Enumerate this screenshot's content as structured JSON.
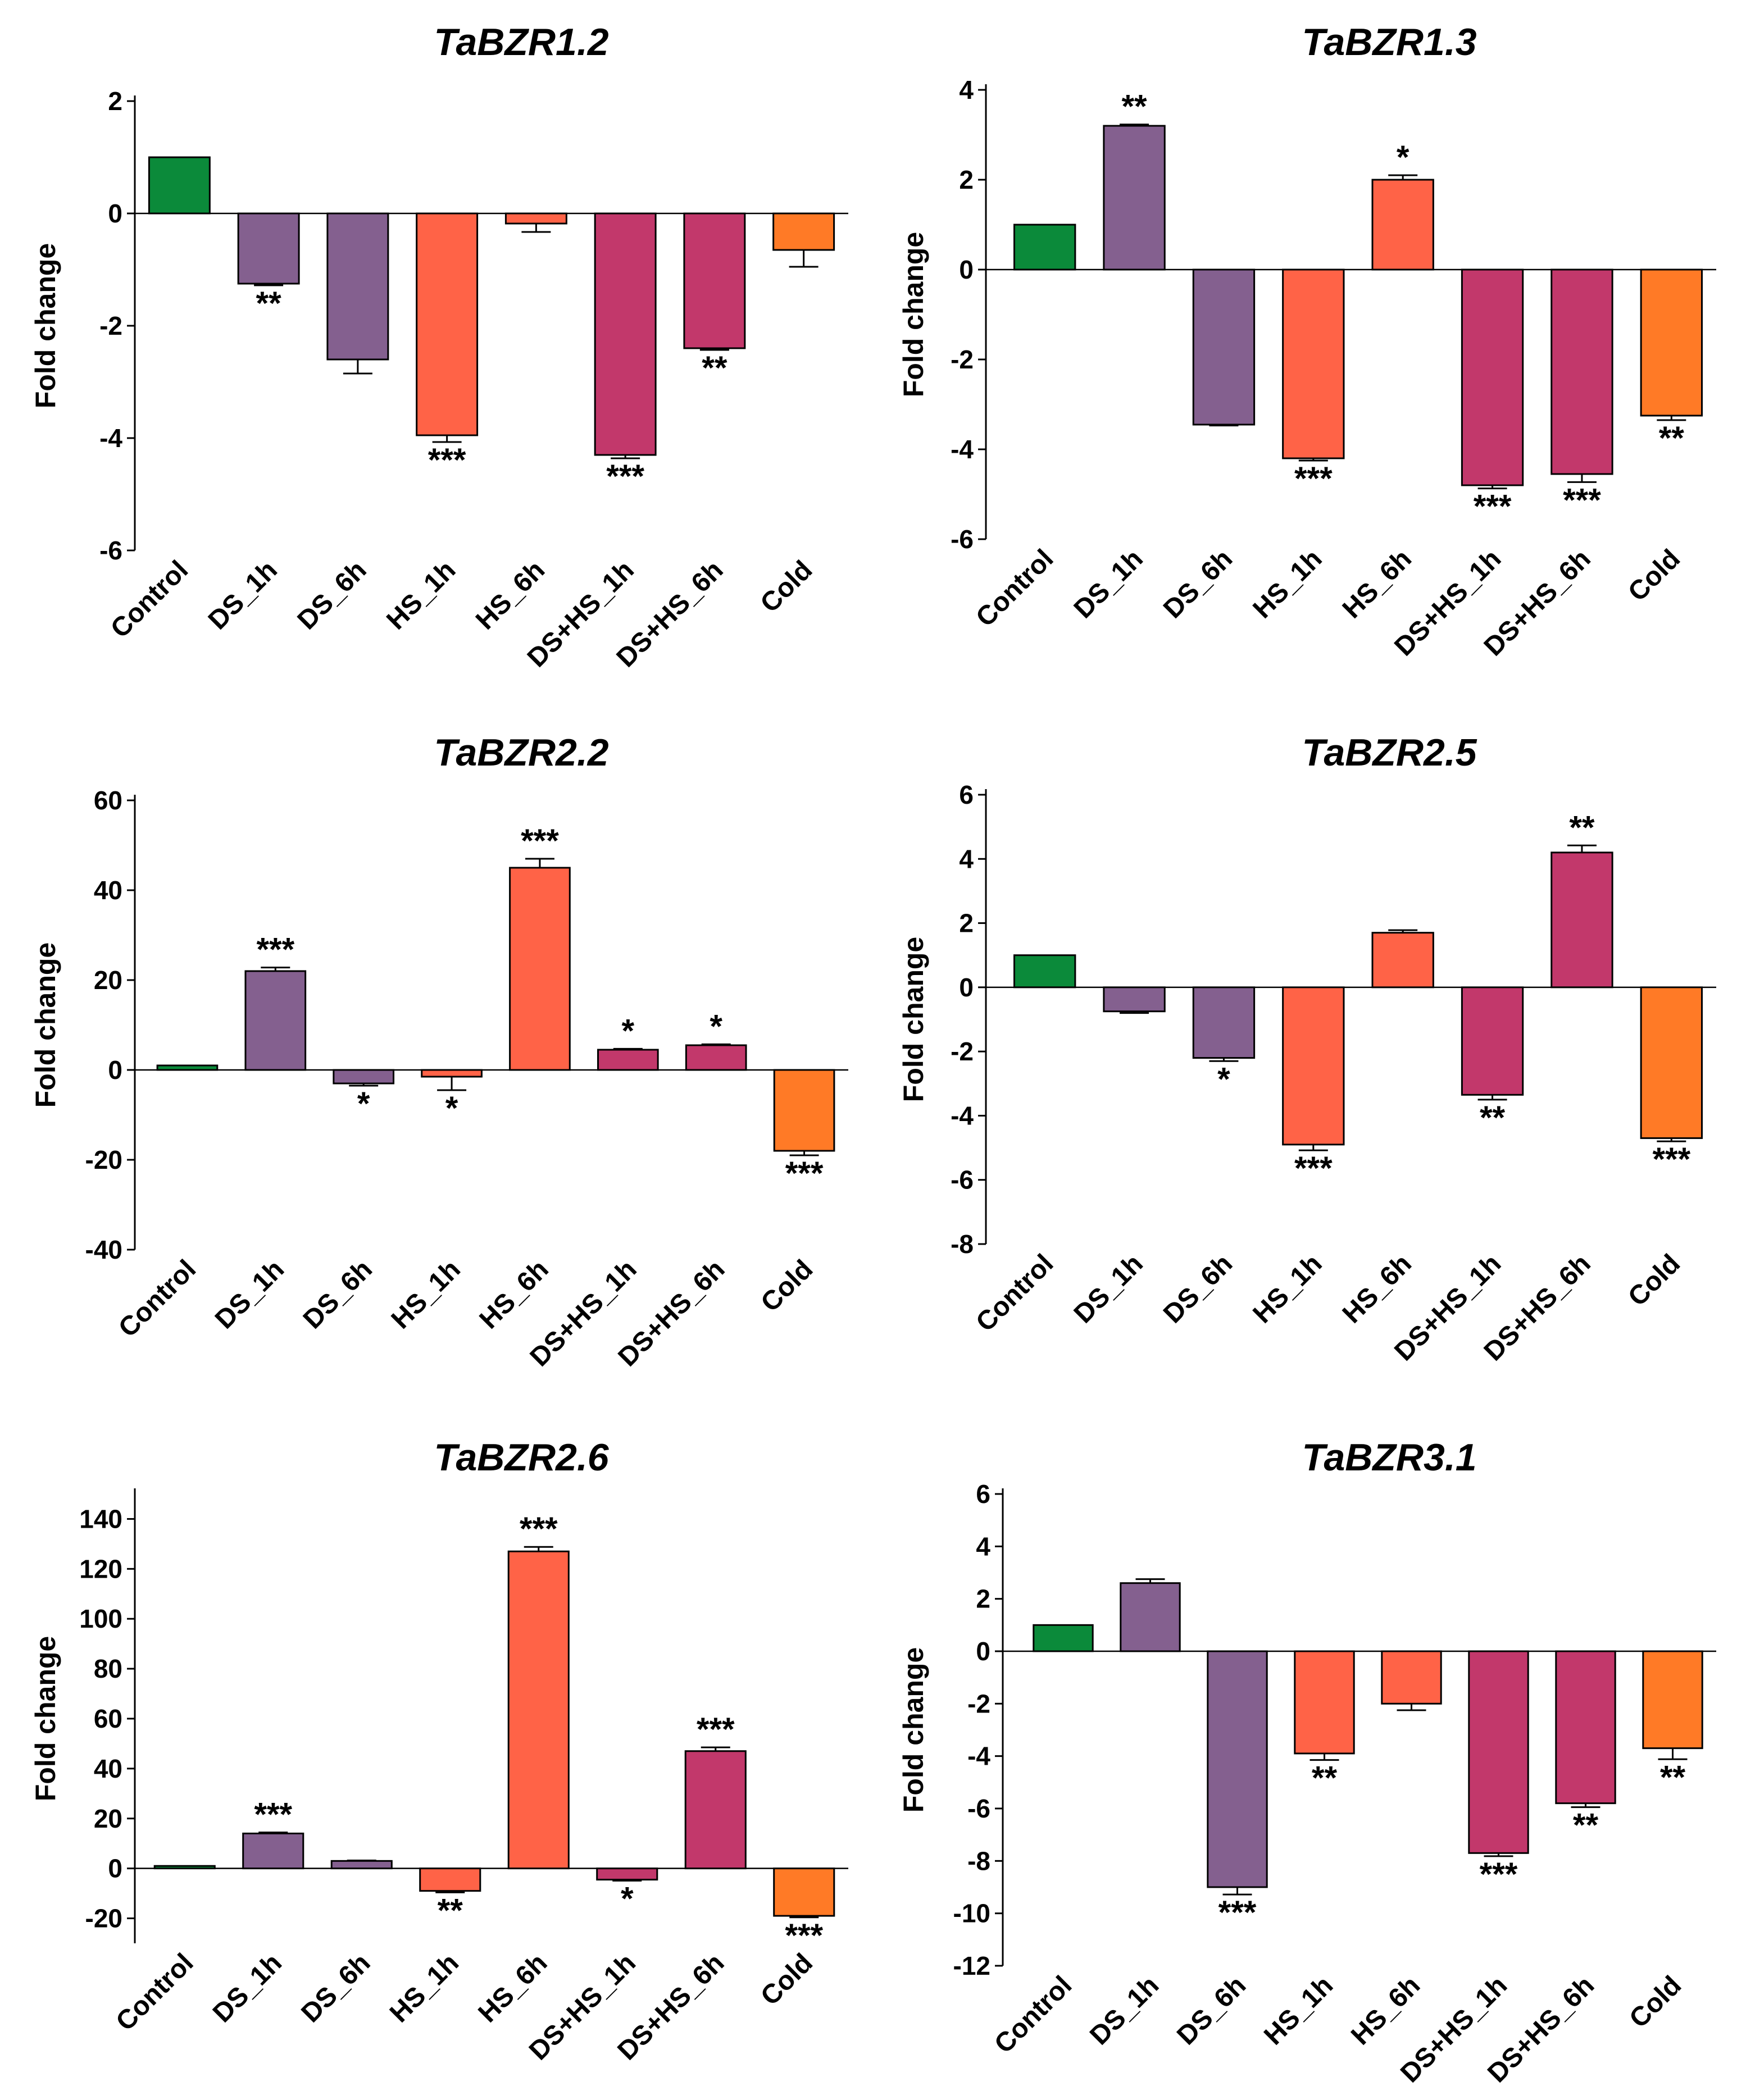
{
  "colors": {
    "Control": "#0b8a3a",
    "DS": "#84608f",
    "HS": "#ff6347",
    "DSHS": "#c2386b",
    "Cold": "#ff7a26"
  },
  "chart_data": [
    {
      "type": "bar",
      "title": "TaBZR1.2",
      "ylabel": "Fold change",
      "ylim": [
        -6,
        2
      ],
      "yticks": [
        -6,
        -4,
        -2,
        0,
        2
      ],
      "tick_labels": [
        "-6",
        "-4",
        "-2",
        "0",
        "2"
      ],
      "categories": [
        "Control",
        "DS_1h",
        "DS_6h",
        "HS_1h",
        "HS_6h",
        "DS+HS_1h",
        "DS+HS_6h",
        "Cold"
      ],
      "values": [
        1.0,
        -1.25,
        -2.6,
        -3.95,
        -0.18,
        -4.3,
        -2.4,
        -0.65
      ],
      "errors": [
        0,
        0.03,
        0.25,
        0.12,
        0.15,
        0.06,
        0.03,
        0.3
      ],
      "significance": [
        "",
        "**",
        "",
        "***",
        "",
        "***",
        "**",
        ""
      ]
    },
    {
      "type": "bar",
      "title": "TaBZR1.3",
      "ylabel": "Fold change",
      "ylim": [
        -6,
        4
      ],
      "yticks": [
        -6,
        -4,
        -2,
        0,
        2,
        4
      ],
      "tick_labels": [
        "-6",
        "-4",
        "-2",
        "0",
        "2",
        "4"
      ],
      "categories": [
        "Control",
        "DS_1h",
        "DS_6h",
        "HS_1h",
        "HS_6h",
        "DS+HS_1h",
        "DS+HS_6h",
        "Cold"
      ],
      "values": [
        1.0,
        3.2,
        -3.45,
        -4.2,
        2.0,
        -4.8,
        -4.55,
        -3.25
      ],
      "errors": [
        0,
        0.03,
        0.02,
        0.05,
        0.1,
        0.07,
        0.18,
        0.1
      ],
      "significance": [
        "",
        "**",
        "",
        "***",
        "*",
        "***",
        "***",
        "**"
      ]
    },
    {
      "type": "bar",
      "title": "TaBZR2.2",
      "ylabel": "Fold change",
      "ylim": [
        -40,
        60
      ],
      "yticks": [
        -40,
        -20,
        0,
        20,
        40,
        60
      ],
      "tick_labels": [
        "-40",
        "-20",
        "0",
        "20",
        "40",
        "60"
      ],
      "categories": [
        "Control",
        "DS_1h",
        "DS_6h",
        "HS_1h",
        "HS_6h",
        "DS+HS_1h",
        "DS+HS_6h",
        "Cold"
      ],
      "values": [
        1.0,
        22.0,
        -3.0,
        -1.5,
        45.0,
        4.5,
        5.5,
        -18.0
      ],
      "errors": [
        0,
        0.8,
        0.5,
        3.0,
        2.0,
        0.2,
        0.2,
        1.0
      ],
      "significance": [
        "",
        "***",
        "*",
        "*",
        "***",
        "*",
        "*",
        "***"
      ]
    },
    {
      "type": "bar",
      "title": "TaBZR2.5",
      "ylabel": "Fold change",
      "ylim": [
        -8,
        6
      ],
      "yticks": [
        -8,
        -6,
        -4,
        -2,
        0,
        2,
        4,
        6
      ],
      "tick_labels": [
        "-8",
        "-6",
        "-4",
        "-2",
        "0",
        "2",
        "4",
        "6"
      ],
      "categories": [
        "Control",
        "DS_1h",
        "DS_6h",
        "HS_1h",
        "HS_6h",
        "DS+HS_1h",
        "DS+HS_6h",
        "Cold"
      ],
      "values": [
        1.0,
        -0.75,
        -2.2,
        -4.9,
        1.7,
        -3.35,
        4.2,
        -4.7
      ],
      "errors": [
        0,
        0.05,
        0.1,
        0.18,
        0.08,
        0.15,
        0.22,
        0.1
      ],
      "significance": [
        "",
        "",
        "*",
        "***",
        "",
        "**",
        "**",
        "***"
      ]
    },
    {
      "type": "bar",
      "title": "TaBZR2.6",
      "ylabel": "Fold change",
      "ylim": [
        -30,
        150
      ],
      "yticks": [
        -20,
        0,
        20,
        40,
        60,
        80,
        100,
        120,
        140
      ],
      "tick_labels": [
        "-20",
        "0",
        "20",
        "40",
        "60",
        "80",
        "100",
        "120",
        "140"
      ],
      "categories": [
        "Control",
        "DS_1h",
        "DS_6h",
        "HS_1h",
        "HS_6h",
        "DS+HS_1h",
        "DS+HS_6h",
        "Cold"
      ],
      "values": [
        1.0,
        14.0,
        3.0,
        -9.0,
        127.0,
        -4.5,
        47.0,
        -19.0
      ],
      "errors": [
        0,
        0.4,
        0.2,
        0.6,
        1.8,
        0.4,
        1.5,
        0.6
      ],
      "significance": [
        "",
        "***",
        "",
        "**",
        "***",
        "*",
        "***",
        "***"
      ]
    },
    {
      "type": "bar",
      "title": "TaBZR3.1",
      "ylabel": "Fold change",
      "ylim": [
        -12,
        6
      ],
      "yticks": [
        -12,
        -10,
        -8,
        -6,
        -4,
        -2,
        0,
        2,
        4,
        6
      ],
      "tick_labels": [
        "-12",
        "-10",
        "-8",
        "-6",
        "-4",
        "-2",
        "0",
        "2",
        "4",
        "6"
      ],
      "categories": [
        "Control",
        "DS_1h",
        "DS_6h",
        "HS_1h",
        "HS_6h",
        "DS+HS_1h",
        "DS+HS_6h",
        "Cold"
      ],
      "values": [
        1.0,
        2.6,
        -9.0,
        -3.9,
        -2.0,
        -7.7,
        -5.8,
        -3.7
      ],
      "errors": [
        0,
        0.15,
        0.28,
        0.25,
        0.25,
        0.12,
        0.15,
        0.42
      ],
      "significance": [
        "",
        "",
        "***",
        "**",
        "",
        "***",
        "**",
        "**"
      ]
    }
  ]
}
